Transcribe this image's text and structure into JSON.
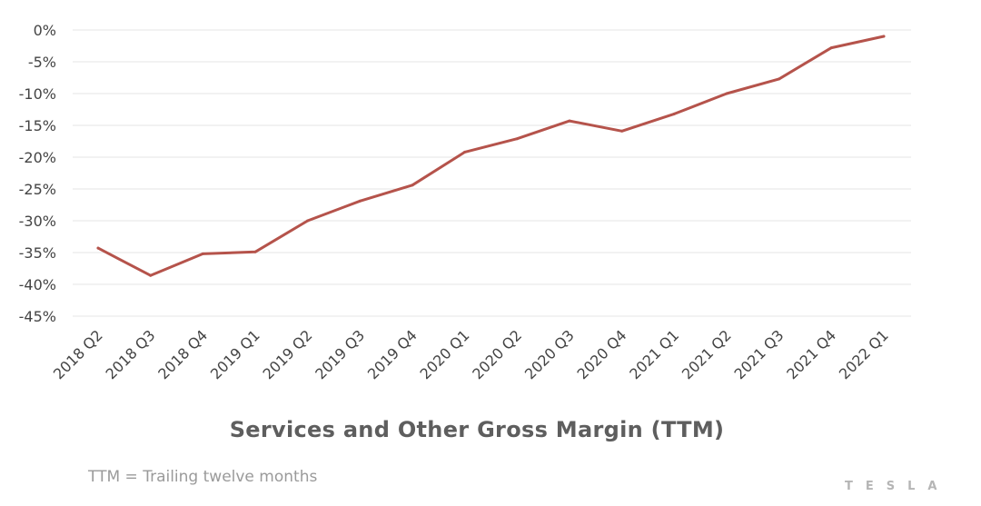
{
  "chart_data": {
    "type": "line",
    "title": "Services and Other Gross Margin (TTM)",
    "xlabel": "",
    "ylabel": "",
    "categories": [
      "2018 Q2",
      "2018 Q3",
      "2018 Q4",
      "2019 Q1",
      "2019 Q2",
      "2019 Q3",
      "2019 Q4",
      "2020 Q1",
      "2020 Q2",
      "2020 Q3",
      "2020 Q4",
      "2021 Q1",
      "2021 Q2",
      "2021 Q3",
      "2021 Q4",
      "2022 Q1"
    ],
    "series": [
      {
        "values": [
          -34.3,
          -38.6,
          -35.2,
          -34.9,
          -30.0,
          -26.9,
          -24.4,
          -19.2,
          -17.1,
          -14.3,
          -15.9,
          -13.2,
          -10.0,
          -7.7,
          -2.8,
          -1.0
        ]
      }
    ],
    "y_ticks": [
      "0%",
      "-5%",
      "-10%",
      "-15%",
      "-20%",
      "-25%",
      "-30%",
      "-35%",
      "-40%",
      "-45%"
    ],
    "ylim": [
      -45,
      0
    ],
    "grid": true,
    "legend": "none",
    "line_color": "#b5534b",
    "footnote": "TTM = Trailing twelve months"
  },
  "brand": {
    "logo_text": "TESLA"
  }
}
